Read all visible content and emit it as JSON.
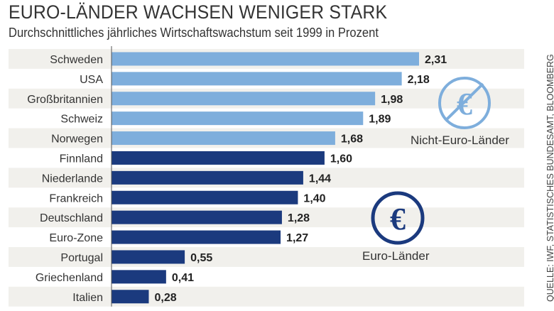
{
  "chart_data": {
    "type": "bar",
    "orientation": "horizontal",
    "title": "EURO-LÄNDER WACHSEN WENIGER STARK",
    "subtitle": "Durchschnittliches jährliches Wirtschaftswachstum seit 1999 in Prozent",
    "categories": [
      "Schweden",
      "USA",
      "Großbritannien",
      "Schweiz",
      "Norwegen",
      "Finnland",
      "Niederlande",
      "Frankreich",
      "Deutschland",
      "Euro-Zone",
      "Portugal",
      "Griechenland",
      "Italien"
    ],
    "values": [
      2.31,
      2.18,
      1.98,
      1.89,
      1.68,
      1.6,
      1.44,
      1.4,
      1.28,
      1.27,
      0.55,
      0.41,
      0.28
    ],
    "value_labels": [
      "2,31",
      "2,18",
      "1,98",
      "1,89",
      "1,68",
      "1,60",
      "1,44",
      "1,40",
      "1,28",
      "1,27",
      "0,55",
      "0,41",
      "0,28"
    ],
    "groups": [
      "non-euro",
      "non-euro",
      "non-euro",
      "non-euro",
      "non-euro",
      "euro",
      "euro",
      "euro",
      "euro",
      "euro",
      "euro",
      "euro",
      "euro"
    ],
    "group_labels": {
      "non-euro": "Nicht-Euro-Länder",
      "euro": "Euro-Länder"
    },
    "colors": {
      "non-euro": "#7eaedc",
      "euro": "#1b3a7e",
      "stripe": "#f1f0ec"
    },
    "xlim": [
      0,
      2.5
    ],
    "grid": false,
    "source": "QUELLE: IWF, STATISTISCHES BUNDESAMT, BLOOMBERG"
  }
}
